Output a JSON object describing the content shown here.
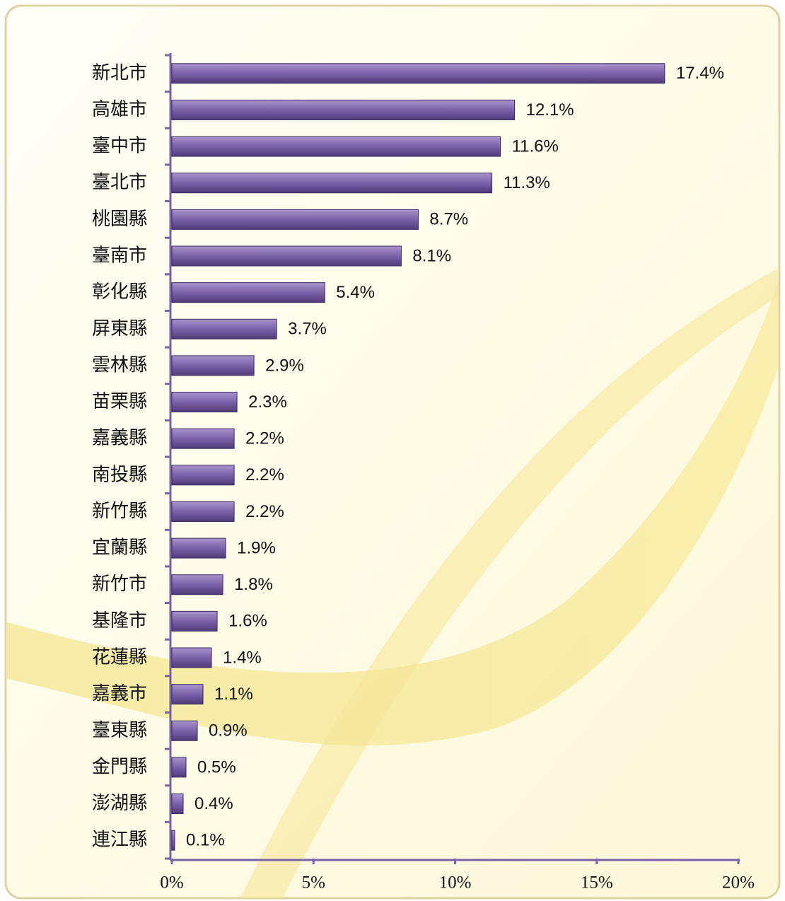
{
  "chart_data": {
    "type": "bar",
    "orientation": "horizontal",
    "categories": [
      "新北市",
      "高雄市",
      "臺中市",
      "臺北市",
      "桃園縣",
      "臺南市",
      "彰化縣",
      "屏東縣",
      "雲林縣",
      "苗栗縣",
      "嘉義縣",
      "南投縣",
      "新竹縣",
      "宜蘭縣",
      "新竹市",
      "基隆市",
      "花蓮縣",
      "嘉義市",
      "臺東縣",
      "金門縣",
      "澎湖縣",
      "連江縣"
    ],
    "values": [
      17.4,
      12.1,
      11.6,
      11.3,
      8.7,
      8.1,
      5.4,
      3.7,
      2.9,
      2.3,
      2.2,
      2.2,
      2.2,
      1.9,
      1.8,
      1.6,
      1.4,
      1.1,
      0.9,
      0.5,
      0.4,
      0.1
    ],
    "value_labels": [
      "17.4%",
      "12.1%",
      "11.6%",
      "11.3%",
      "8.7%",
      "8.1%",
      "5.4%",
      "3.7%",
      "2.9%",
      "2.3%",
      "2.2%",
      "2.2%",
      "2.2%",
      "1.9%",
      "1.8%",
      "1.6%",
      "1.4%",
      "1.1%",
      "0.9%",
      "0.5%",
      "0.4%",
      "0.1%"
    ],
    "color": "#7b62a8",
    "xlim": [
      0,
      20
    ],
    "xticks": [
      {
        "value": 0,
        "label": "0%"
      },
      {
        "value": 5,
        "label": "5%"
      },
      {
        "value": 10,
        "label": "10%"
      },
      {
        "value": 15,
        "label": "15%"
      },
      {
        "value": 20,
        "label": "20%"
      }
    ]
  }
}
